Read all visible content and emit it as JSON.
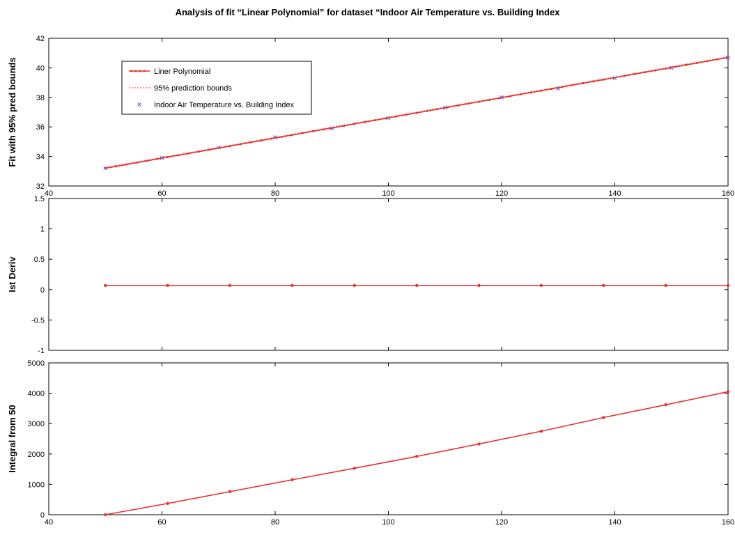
{
  "title": "Analysis of fit “Linear Polynomial” for dataset “Indoor Air Temperature vs. Building Index",
  "colors": {
    "fit": "#e8322c",
    "bounds": "#e8322c",
    "data": "#7b5fb5",
    "axis": "#000000"
  },
  "chart_data": [
    {
      "type": "line",
      "ylabel": "Fit with 95% pred bounds",
      "xlim": [
        40,
        160
      ],
      "ylim": [
        32,
        42
      ],
      "xticks": [
        "40",
        "60",
        "80",
        "100",
        "120",
        "140",
        "160"
      ],
      "yticks": [
        "32",
        "34",
        "36",
        "38",
        "40",
        "42"
      ],
      "legend_position": "top-left",
      "legend": [
        "Liner Polynomial",
        "95% prediction bounds",
        "Indoor Air Temperature vs. Building Index"
      ],
      "series": [
        {
          "name": "Liner Polynomial",
          "style": "line-marker",
          "x": [
            50,
            160
          ],
          "y": [
            33.2,
            40.7
          ]
        },
        {
          "name": "95% prediction bounds",
          "style": "dotted",
          "x": [
            50,
            160
          ],
          "y": [
            33.25,
            40.75
          ]
        },
        {
          "name": "Indoor Air Temperature vs. Building Index",
          "style": "x-marker",
          "x": [
            50,
            60,
            70,
            80,
            90,
            100,
            110,
            120,
            130,
            140,
            150,
            160
          ],
          "y": [
            33.2,
            33.9,
            34.6,
            35.3,
            35.9,
            36.6,
            37.3,
            38.0,
            38.6,
            39.3,
            40.0,
            40.7
          ]
        }
      ]
    },
    {
      "type": "line",
      "ylabel": "Ist Deriv",
      "xlim": [
        40,
        160
      ],
      "ylim": [
        -1,
        1.5
      ],
      "xticks": [],
      "yticks": [
        "-1",
        "-0.5",
        "0",
        "0.5",
        "1",
        "1.5"
      ],
      "series": [
        {
          "name": "",
          "style": "line-marker",
          "x": [
            50,
            61,
            72,
            83,
            94,
            105,
            116,
            127,
            138,
            149,
            160
          ],
          "y": [
            0.068,
            0.068,
            0.068,
            0.068,
            0.068,
            0.068,
            0.068,
            0.068,
            0.068,
            0.068,
            0.068
          ]
        }
      ]
    },
    {
      "type": "line",
      "ylabel": "Integral from 50",
      "xlim": [
        40,
        160
      ],
      "ylim": [
        0,
        5000
      ],
      "xticks": [
        "40",
        "60",
        "80",
        "100",
        "120",
        "140",
        "160"
      ],
      "yticks": [
        "0",
        "1000",
        "2000",
        "3000",
        "4000",
        "5000"
      ],
      "series": [
        {
          "name": "",
          "style": "line-marker",
          "x": [
            50,
            61,
            72,
            83,
            94,
            105,
            116,
            127,
            138,
            149,
            160
          ],
          "y": [
            0,
            370,
            760,
            1150,
            1530,
            1920,
            2330,
            2750,
            3200,
            3620,
            4050
          ]
        }
      ]
    }
  ]
}
